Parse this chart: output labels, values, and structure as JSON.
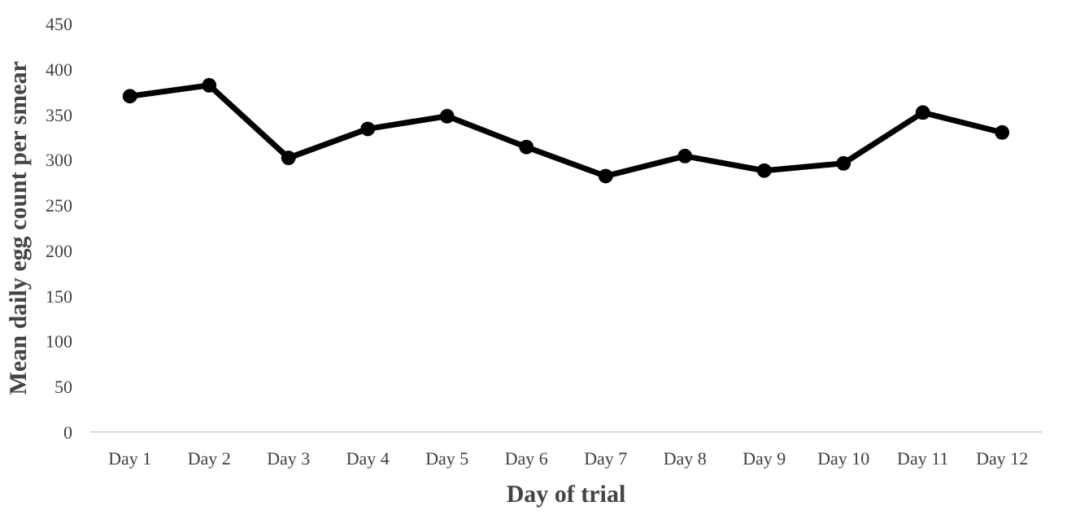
{
  "chart_data": {
    "type": "line",
    "xlabel": "Day of trial",
    "ylabel": "Mean daily egg count per smear",
    "categories": [
      "Day 1",
      "Day 2",
      "Day 3",
      "Day 4",
      "Day 5",
      "Day 6",
      "Day 7",
      "Day 8",
      "Day 9",
      "Day 10",
      "Day 11",
      "Day 12"
    ],
    "series": [
      {
        "color": "#000000",
        "values": [
          370,
          382,
          302,
          334,
          348,
          314,
          282,
          304,
          288,
          296,
          352,
          330
        ]
      }
    ],
    "ylim": [
      0,
      450
    ],
    "yticks": [
      0,
      50,
      100,
      150,
      200,
      250,
      300,
      350,
      400,
      450
    ],
    "grid": false,
    "marker": "circle",
    "line_style": "solid"
  }
}
